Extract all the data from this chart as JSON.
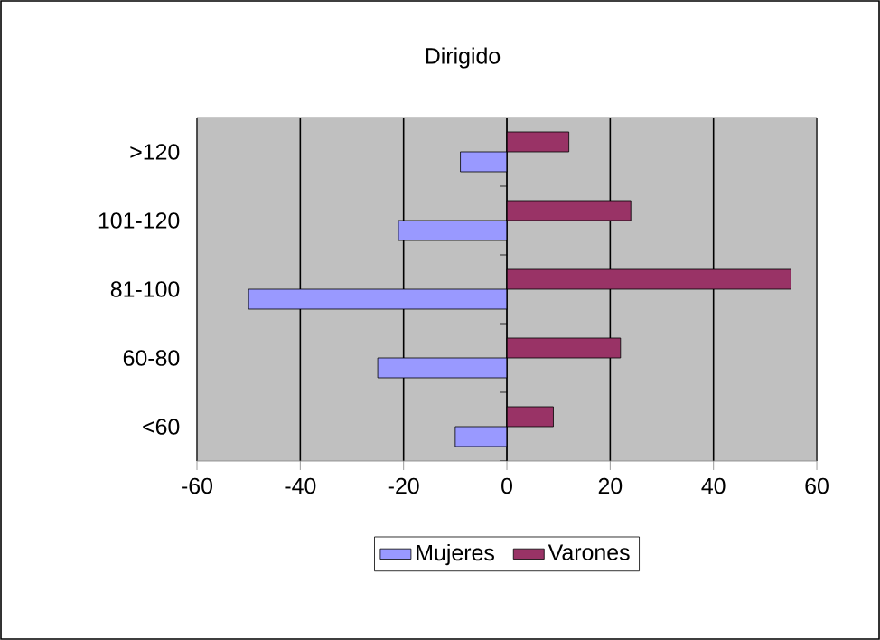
{
  "chart_data": {
    "type": "bar",
    "orientation": "horizontal",
    "title": "Dirigido",
    "categories": [
      ">120",
      "101-120",
      "81-100",
      "60-80",
      "<60"
    ],
    "series": [
      {
        "name": "Mujeres",
        "color": "#9999ff",
        "values": [
          -9,
          -21,
          -50,
          -25,
          -10
        ]
      },
      {
        "name": "Varones",
        "color": "#993366",
        "values": [
          12,
          24,
          55,
          22,
          9
        ]
      }
    ],
    "xlim": [
      -60,
      60
    ],
    "xticks": [
      -60,
      -40,
      -20,
      0,
      20,
      40,
      60
    ],
    "grid": "x",
    "legend": "bottom"
  }
}
